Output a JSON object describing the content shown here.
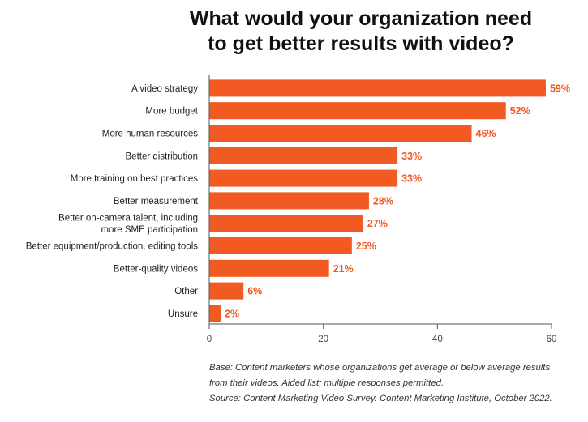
{
  "header": {
    "title_line1": "What would your organization need",
    "title_line2": "to get better results with video?"
  },
  "chart_data": {
    "type": "bar",
    "orientation": "horizontal",
    "title": "What would your organization need to get better results with video?",
    "categories": [
      [
        "A video strategy"
      ],
      [
        "More budget"
      ],
      [
        "More human resources"
      ],
      [
        "Better distribution"
      ],
      [
        "More training on best practices"
      ],
      [
        "Better measurement"
      ],
      [
        "Better on-camera talent, including",
        "more SME participation"
      ],
      [
        "Better equipment/production, editing tools"
      ],
      [
        "Better-quality videos"
      ],
      [
        "Other"
      ],
      [
        "Unsure"
      ]
    ],
    "values": [
      59,
      52,
      46,
      33,
      33,
      28,
      27,
      25,
      21,
      6,
      2
    ],
    "data_labels": [
      "59%",
      "52%",
      "46%",
      "33%",
      "33%",
      "28%",
      "27%",
      "25%",
      "21%",
      "6%",
      "2%"
    ],
    "xlim": [
      0,
      60
    ],
    "xticks": [
      0,
      20,
      40,
      60
    ],
    "xlabel": "",
    "ylabel": "",
    "bar_color": "#f15a22",
    "label_color": "#f15a22"
  },
  "footnote": {
    "base_line1": "Base: Content marketers whose organizations get average or below average results",
    "base_line2": "from their videos. Aided list; multiple responses permitted.",
    "source": "Source: Content Marketing Video Survey. Content Marketing Institute, October 2022."
  }
}
